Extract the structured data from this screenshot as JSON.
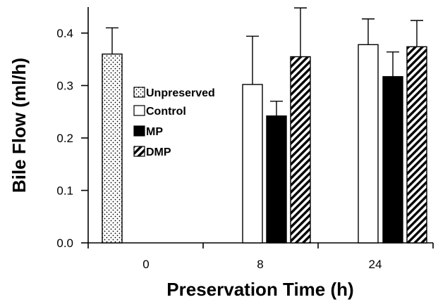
{
  "chart_data": {
    "type": "bar",
    "title": "",
    "xlabel": "Preservation Time (h)",
    "ylabel": "Bile Flow (ml/h)",
    "ylim": [
      0,
      0.45
    ],
    "yticks": [
      "0.0",
      "0.1",
      "0.2",
      "0.3",
      "0.4"
    ],
    "categories": [
      "0",
      "8",
      "24"
    ],
    "legend_position": "center-left",
    "grid": false,
    "series": [
      {
        "name": "Unpreserved",
        "pattern": "dots",
        "color": "#ffffff",
        "values": [
          0.36,
          null,
          null
        ],
        "errors": [
          0.05,
          null,
          null
        ]
      },
      {
        "name": "Control",
        "pattern": "none",
        "color": "#ffffff",
        "values": [
          null,
          0.302,
          0.378
        ],
        "errors": [
          null,
          0.092,
          0.049
        ]
      },
      {
        "name": "MP",
        "pattern": "solid",
        "color": "#000000",
        "values": [
          null,
          0.242,
          0.317
        ],
        "errors": [
          null,
          0.028,
          0.047
        ]
      },
      {
        "name": "DMP",
        "pattern": "diagonal",
        "color": "#ffffff",
        "values": [
          null,
          0.355,
          0.374
        ],
        "errors": [
          null,
          0.093,
          0.05
        ]
      }
    ]
  }
}
